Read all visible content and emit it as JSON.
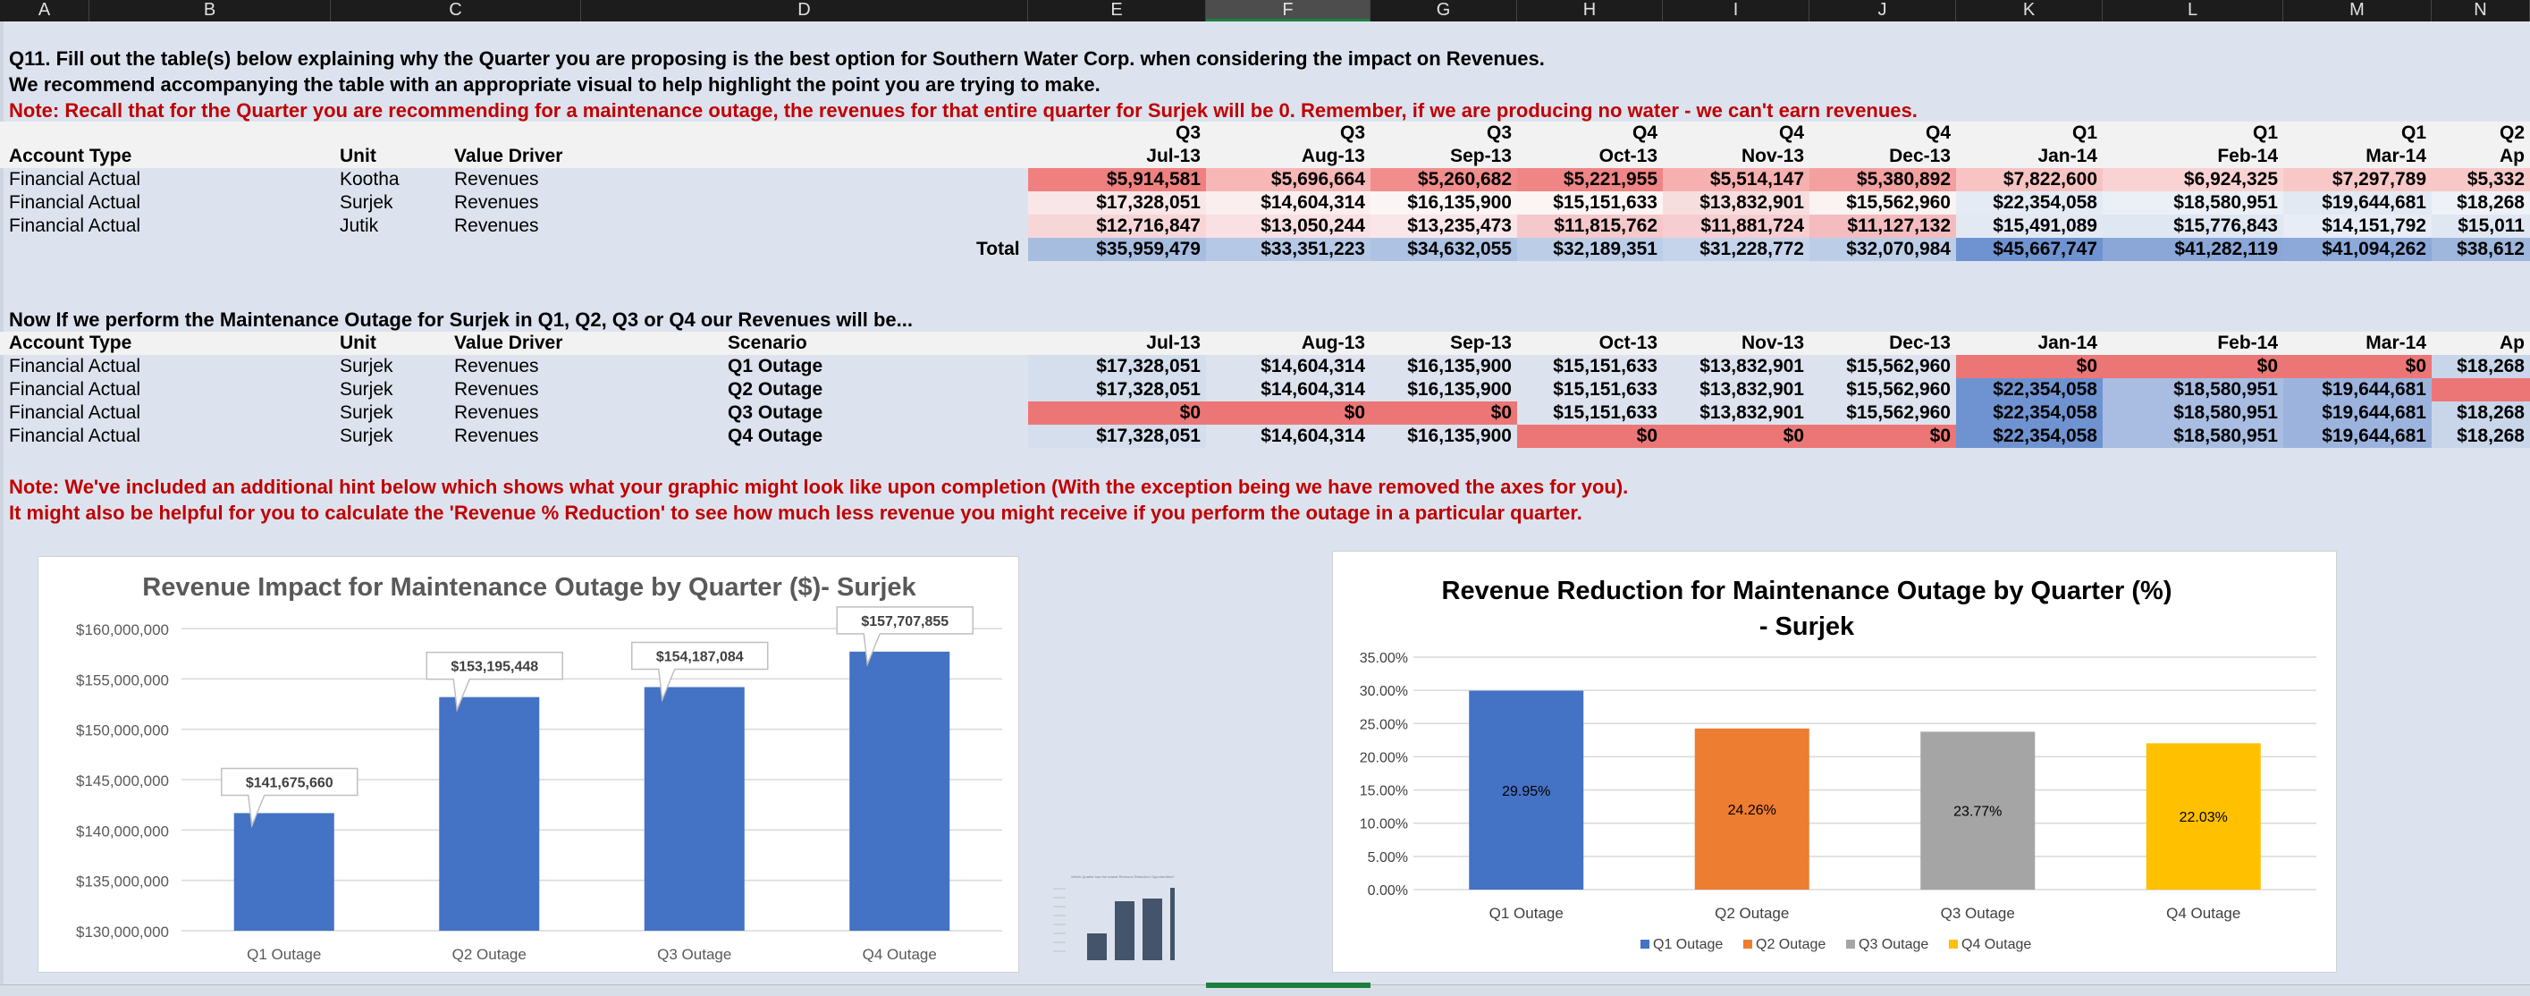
{
  "columns": [
    "A",
    "B",
    "C",
    "D",
    "E",
    "F",
    "G",
    "H",
    "I",
    "J",
    "K",
    "L",
    "M",
    "N"
  ],
  "q11": {
    "line1": "Q11. Fill out the table(s) below explaining why the Quarter you are proposing is the best option for Southern Water Corp. when considering the impact on Revenues.",
    "line2": "We recommend accompanying the table with an appropriate visual to help highlight the point you are trying to make.",
    "note": "Note: Recall that for the Quarter you are recommending for a maintenance outage, the revenues for that entire quarter for Surjek will be 0. Remember, if we are producing no water - we can't earn revenues."
  },
  "table1": {
    "quarters": [
      "Q3",
      "Q3",
      "Q3",
      "Q4",
      "Q4",
      "Q4",
      "Q1",
      "Q1",
      "Q1",
      "Q2"
    ],
    "headers": [
      "Account Type",
      "Unit",
      "Value Driver"
    ],
    "months": [
      "Jul-13",
      "Aug-13",
      "Sep-13",
      "Oct-13",
      "Nov-13",
      "Dec-13",
      "Jan-14",
      "Feb-14",
      "Mar-14",
      "Ap"
    ],
    "rows": [
      {
        "type": "Financial Actual",
        "unit": "Kootha",
        "driver": "Revenues",
        "vals": [
          "$5,914,581",
          "$5,696,664",
          "$5,260,682",
          "$5,221,955",
          "$5,514,147",
          "$5,380,892",
          "$7,822,600",
          "$6,924,325",
          "$7,297,789",
          "$5,332"
        ],
        "colors": [
          "#f08080",
          "#f7b7b7",
          "#f18d8d",
          "#f08585",
          "#f6b0b0",
          "#f2a0a0",
          "#f7c3c3",
          "#f9d3d3",
          "#f8c8c8",
          "#f8c8c8"
        ]
      },
      {
        "type": "Financial Actual",
        "unit": "Surjek",
        "driver": "Revenues",
        "vals": [
          "$17,328,051",
          "$14,604,314",
          "$16,135,900",
          "$15,151,633",
          "$13,832,901",
          "$15,562,960",
          "$22,354,058",
          "$18,580,951",
          "$19,644,681",
          "$18,268"
        ],
        "colors": [
          "#f9e6e8",
          "#fbeeee",
          "#fbf5f6",
          "#fdf4f4",
          "#f7dede",
          "#fbf2f2",
          "#e4ebf5",
          "#ebf0f7",
          "#e3e9f3",
          "#eef2f8"
        ]
      },
      {
        "type": "Financial Actual",
        "unit": "Jutik",
        "driver": "Revenues",
        "vals": [
          "$12,716,847",
          "$13,050,244",
          "$13,235,473",
          "$11,815,762",
          "$11,881,724",
          "$11,127,132",
          "$15,491,089",
          "$15,776,843",
          "$14,151,792",
          "$15,011"
        ],
        "colors": [
          "#f7d6d8",
          "#f9e0e2",
          "#f9e6e8",
          "#f5c8cb",
          "#f6cdd0",
          "#f4bcbf",
          "#e2e9f3",
          "#dfe7f2",
          "#e7ecf5",
          "#e0e7f2"
        ]
      }
    ],
    "total_label": "Total",
    "totals": [
      "$35,959,479",
      "$33,351,223",
      "$34,632,055",
      "$32,189,351",
      "$31,228,772",
      "$32,070,984",
      "$45,667,747",
      "$41,282,119",
      "$41,094,262",
      "$38,612"
    ],
    "total_colors": [
      "#a7bde0",
      "#b5c8e6",
      "#aec3e3",
      "#bccde8",
      "#c6d4eb",
      "#bccde8",
      "#6f93d0",
      "#8aa7d8",
      "#8ca9d9",
      "#9fb7dd"
    ]
  },
  "section2": {
    "title": "Now If we perform the Maintenance Outage for Surjek in Q1, Q2, Q3 or Q4 our Revenues will be...",
    "headers": [
      "Account Type",
      "Unit",
      "Value Driver",
      "Scenario"
    ],
    "months": [
      "Jul-13",
      "Aug-13",
      "Sep-13",
      "Oct-13",
      "Nov-13",
      "Dec-13",
      "Jan-14",
      "Feb-14",
      "Mar-14",
      "Ap"
    ],
    "rows": [
      {
        "type": "Financial Actual",
        "unit": "Surjek",
        "driver": "Revenues",
        "scenario": "Q1 Outage",
        "vals": [
          "$17,328,051",
          "$14,604,314",
          "$16,135,900",
          "$15,151,633",
          "$13,832,901",
          "$15,562,960",
          "$0",
          "$0",
          "$0",
          "$18,268"
        ],
        "colors": [
          "#d4deec",
          "#dde3ee",
          "#dde3ee",
          "#dde3ee",
          "#dde3ee",
          "#dde3ee",
          "#ec7676",
          "#ec7676",
          "#ec7676",
          "#c9d6ea"
        ]
      },
      {
        "type": "Financial Actual",
        "unit": "Surjek",
        "driver": "Revenues",
        "scenario": "Q2 Outage",
        "vals": [
          "$17,328,051",
          "$14,604,314",
          "$16,135,900",
          "$15,151,633",
          "$13,832,901",
          "$15,562,960",
          "$22,354,058",
          "$18,580,951",
          "$19,644,681",
          ""
        ],
        "colors": [
          "#d4deec",
          "#dde3ee",
          "#dde3ee",
          "#dde3ee",
          "#dde3ee",
          "#dde3ee",
          "#6f93d0",
          "#a8bde1",
          "#9cb4dd",
          "#ec7676"
        ]
      },
      {
        "type": "Financial Actual",
        "unit": "Surjek",
        "driver": "Revenues",
        "scenario": "Q3 Outage",
        "vals": [
          "$0",
          "$0",
          "$0",
          "$15,151,633",
          "$13,832,901",
          "$15,562,960",
          "$22,354,058",
          "$18,580,951",
          "$19,644,681",
          "$18,268"
        ],
        "colors": [
          "#ec7676",
          "#ec7676",
          "#ec7676",
          "#dde3ee",
          "#dde3ee",
          "#dde3ee",
          "#6f93d0",
          "#a8bde1",
          "#9cb4dd",
          "#c9d6ea"
        ]
      },
      {
        "type": "Financial Actual",
        "unit": "Surjek",
        "driver": "Revenues",
        "scenario": "Q4 Outage",
        "vals": [
          "$17,328,051",
          "$14,604,314",
          "$16,135,900",
          "$0",
          "$0",
          "$0",
          "$22,354,058",
          "$18,580,951",
          "$19,644,681",
          "$18,268"
        ],
        "colors": [
          "#d4deec",
          "#dde3ee",
          "#dde3ee",
          "#ec7676",
          "#ec7676",
          "#ec7676",
          "#6f93d0",
          "#a8bde1",
          "#9cb4dd",
          "#c9d6ea"
        ]
      }
    ]
  },
  "notes": {
    "line1": "Note: We've included an additional hint below which shows what your graphic might look like upon completion (With the exception being we have removed the axes for you).",
    "line2": "It might also be helpful for you to calculate the 'Revenue % Reduction' to see how much less revenue you might receive if you perform the outage in a particular quarter."
  },
  "chart_data": [
    {
      "type": "bar",
      "title": "Revenue Impact for Maintenance Outage by Quarter ($)- Surjek",
      "categories": [
        "Q1 Outage",
        "Q2 Outage",
        "Q3 Outage",
        "Q4 Outage"
      ],
      "values": [
        141675660,
        153195448,
        154187084,
        157707855
      ],
      "data_labels": [
        "$141,675,660",
        "$153,195,448",
        "$154,187,084",
        "$157,707,855"
      ],
      "ylim": [
        130000000,
        160000000
      ],
      "yticks": [
        "$160,000,000",
        "$155,000,000",
        "$150,000,000",
        "$145,000,000",
        "$140,000,000",
        "$135,000,000",
        "$130,000,000"
      ],
      "color": "#4472c4",
      "grid": true
    },
    {
      "type": "bar",
      "title": "Revenue Reduction for Maintenance Outage by Quarter (%) - Surjek",
      "categories": [
        "Q1 Outage",
        "Q2 Outage",
        "Q3 Outage",
        "Q4 Outage"
      ],
      "values": [
        29.95,
        24.26,
        23.77,
        22.03
      ],
      "data_labels": [
        "29.95%",
        "24.26%",
        "23.77%",
        "22.03%"
      ],
      "ylim": [
        0,
        35
      ],
      "yticks": [
        "35.00%",
        "30.00%",
        "25.00%",
        "20.00%",
        "15.00%",
        "10.00%",
        "5.00%",
        "0.00%"
      ],
      "colors": [
        "#4472c4",
        "#ed7d31",
        "#a5a5a5",
        "#ffc000"
      ],
      "legend": [
        "Q1 Outage",
        "Q2 Outage",
        "Q3 Outage",
        "Q4 Outage"
      ],
      "legend_position": "bottom",
      "grid": true
    },
    {
      "type": "bar",
      "title": "Which Quarter has the lowest Revenue Reduction Opportunities?",
      "values": [
        1,
        2.2,
        2.3,
        2.7
      ],
      "color": "#44546a"
    }
  ]
}
